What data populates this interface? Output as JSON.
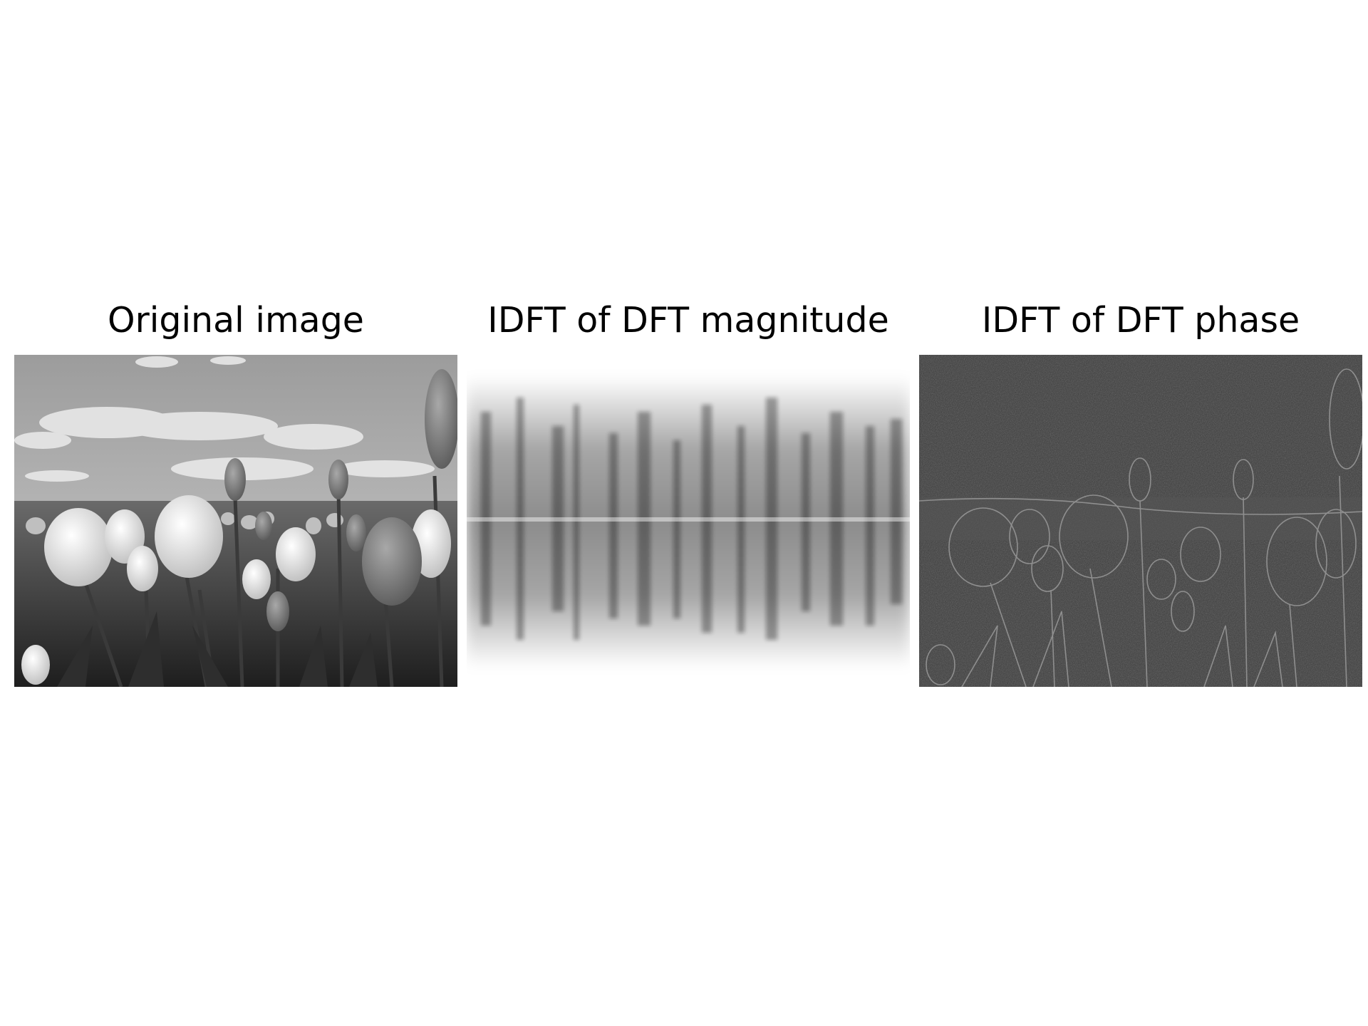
{
  "panels": [
    {
      "title": "Original image",
      "content": "grayscale photo of a tulip field under a cloudy sky"
    },
    {
      "title": "IDFT of DFT magnitude",
      "content": "dark blurred vertical streaks on white background"
    },
    {
      "title": "IDFT of DFT phase",
      "content": "edge-outline image of tulips on a dark noisy background"
    }
  ],
  "colors": {
    "background": "#ffffff",
    "text": "#000000",
    "phase_background": "#3a3a3a",
    "sky": "#b4b4b4"
  }
}
